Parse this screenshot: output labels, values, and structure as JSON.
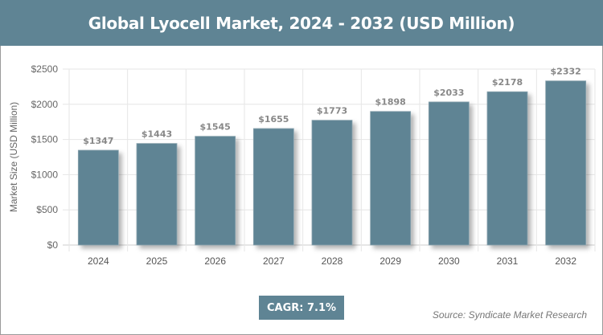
{
  "chart_data": {
    "type": "bar",
    "title": "Global Lyocell Market, 2024 - 2032 (USD Million)",
    "xlabel": "",
    "ylabel": "Market Size (USD Million)",
    "categories": [
      "2024",
      "2025",
      "2026",
      "2027",
      "2028",
      "2029",
      "2030",
      "2031",
      "2032"
    ],
    "values": [
      1347,
      1443,
      1545,
      1655,
      1773,
      1898,
      2033,
      2178,
      2332
    ],
    "data_labels": [
      "$1347",
      "$1443",
      "$1545",
      "$1655",
      "$1773",
      "$1898",
      "$2033",
      "$2178",
      "$2332"
    ],
    "ylim": [
      0,
      2500
    ],
    "yticks": [
      0,
      500,
      1000,
      1500,
      2000,
      2500
    ],
    "ytick_labels": [
      "$0",
      "$500",
      "$1000",
      "$1500",
      "$2000",
      "$2500"
    ],
    "grid": true,
    "bar_color": "#5f8494"
  },
  "cagr": "CAGR: 7.1%",
  "source": "Source: Syndicate Market Research"
}
